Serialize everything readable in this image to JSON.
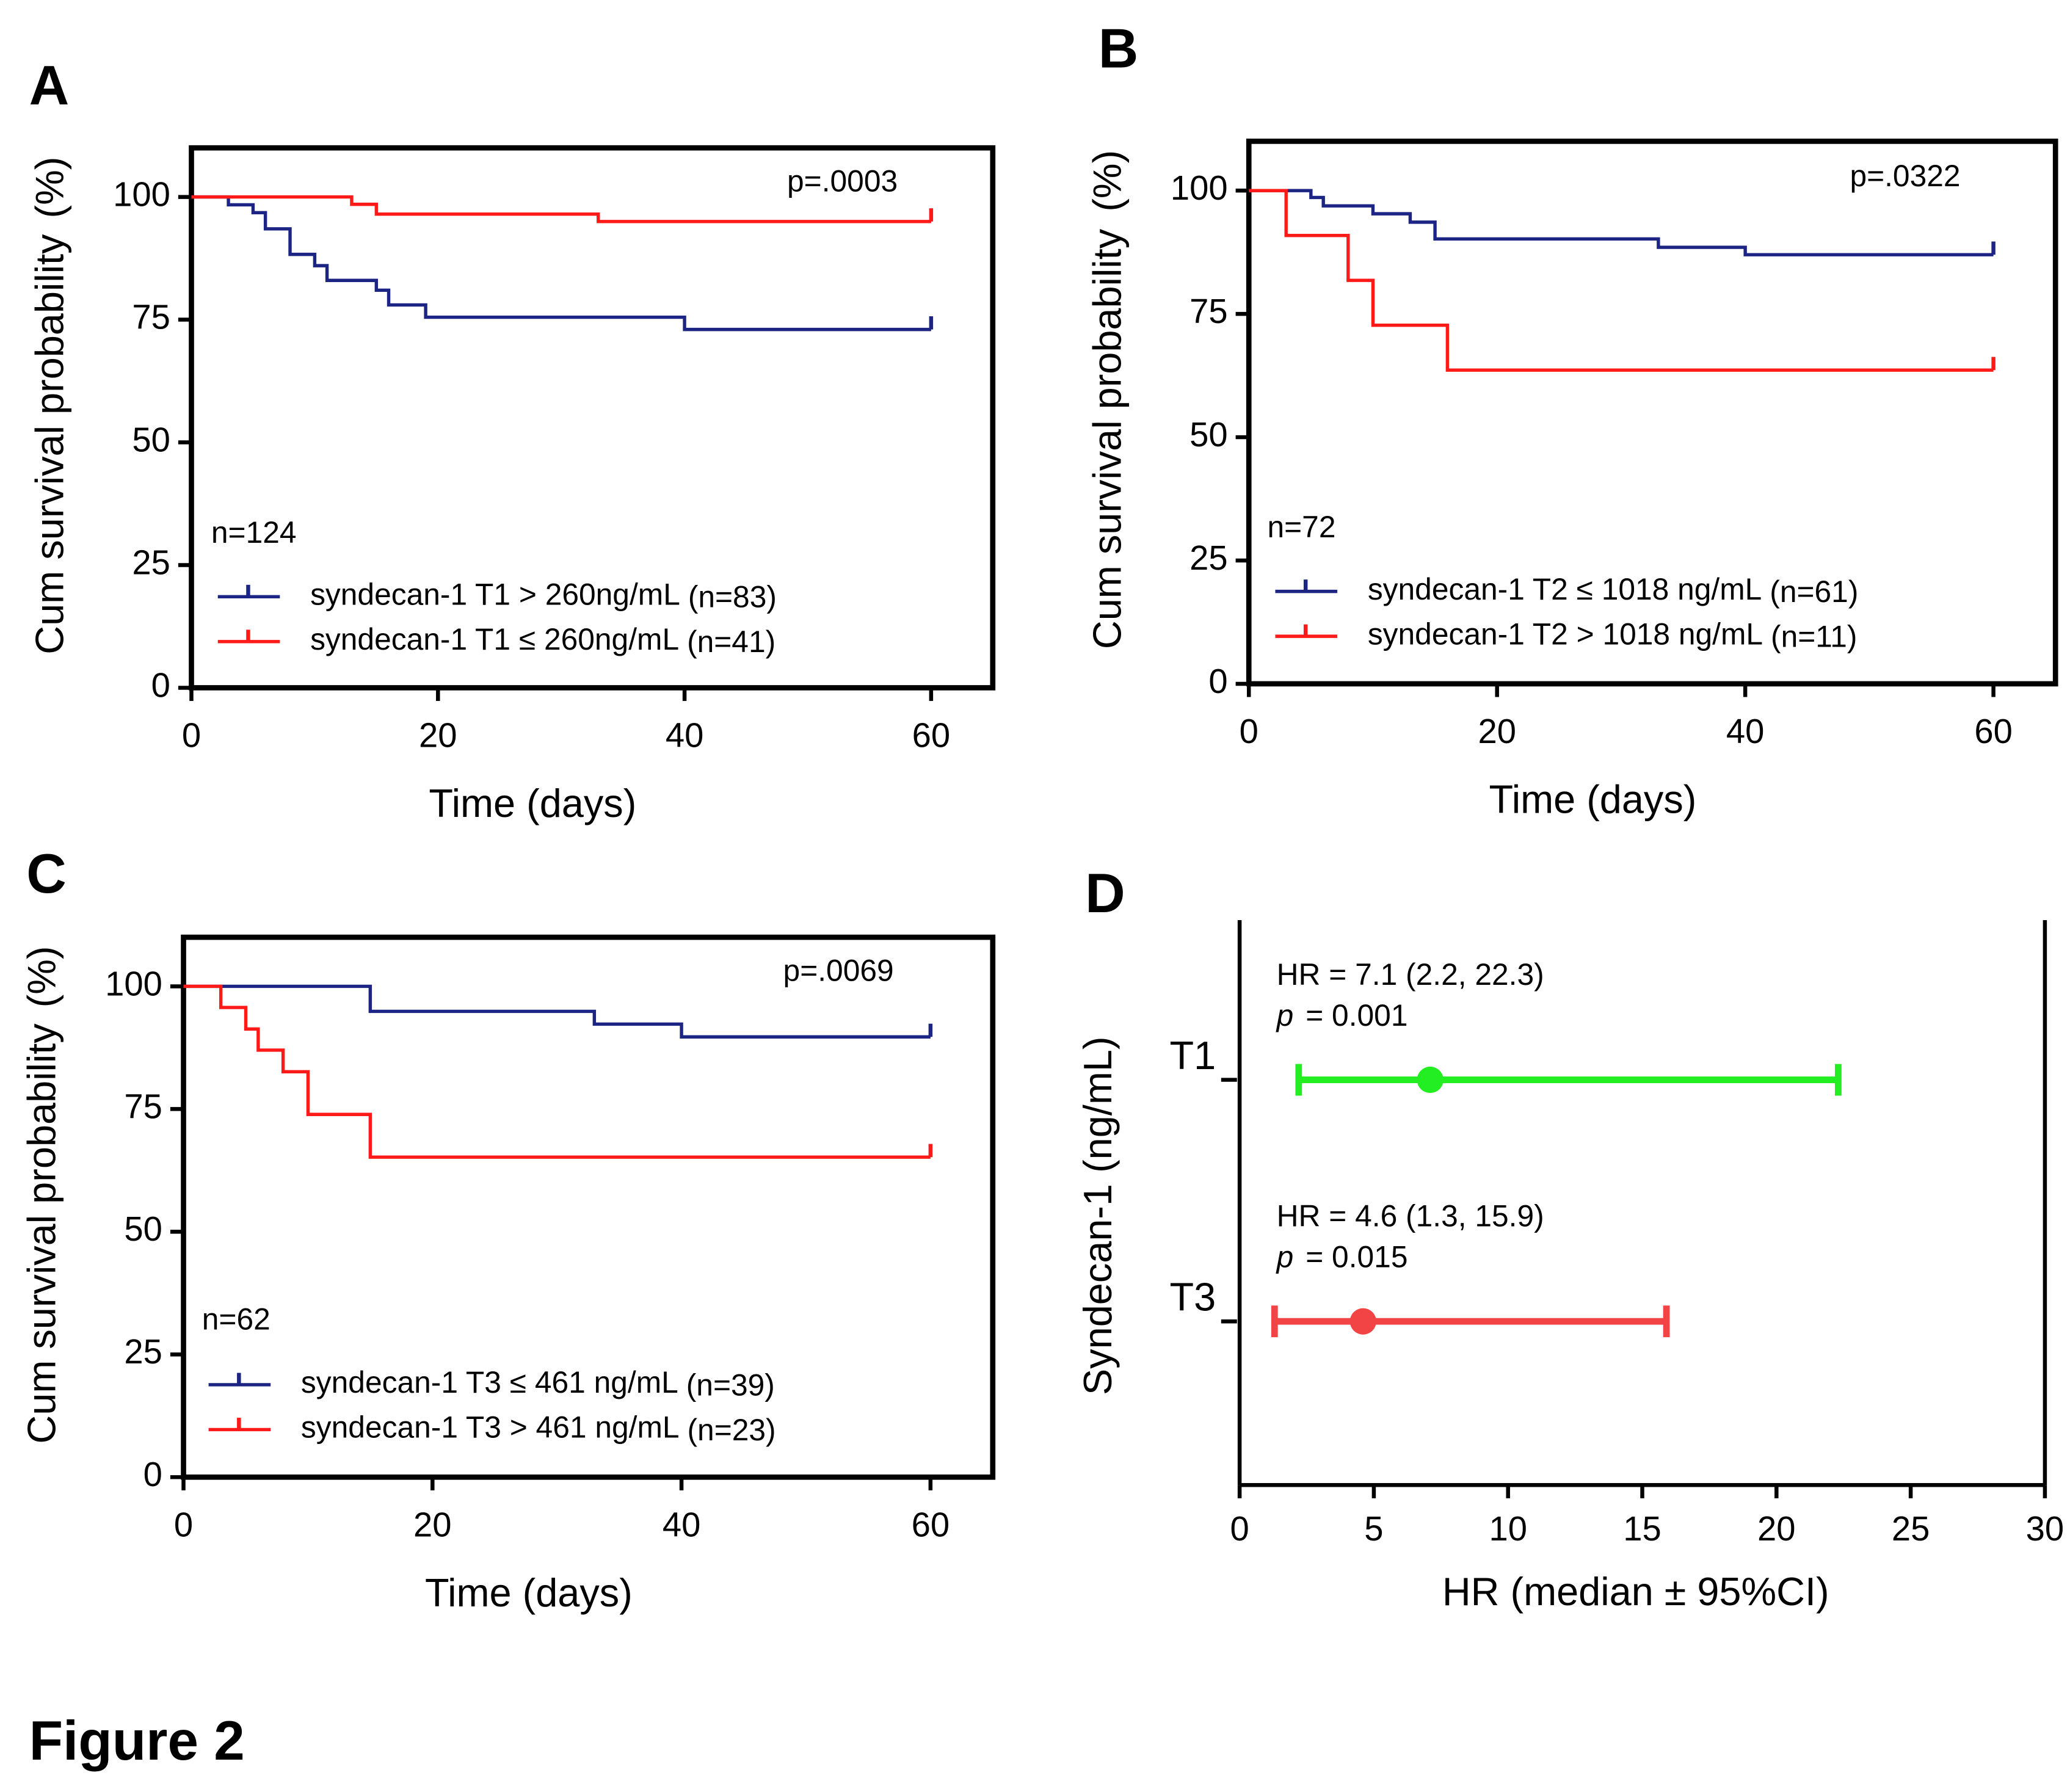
{
  "figure_title": "Figure 2",
  "chart_data": [
    {
      "type": "km",
      "panel": "A",
      "p_text": "p=.0003",
      "n_text": "n=124",
      "ylabel": "Cum survival probability",
      "ylabel_unit": "(%)",
      "xlabel": "Time (days)",
      "xlim": [
        0,
        65
      ],
      "ylim": [
        0,
        110
      ],
      "xticks": [
        0,
        20,
        40,
        60
      ],
      "yticks": [
        0,
        25,
        50,
        75,
        100
      ],
      "series": [
        {
          "name": "syndecan-1 T1 > 260ng/mL",
          "count_label": "(n=83)",
          "color": "#1c2583",
          "x": [
            0,
            3,
            5,
            6,
            8,
            10,
            11,
            15,
            16,
            19,
            40,
            60
          ],
          "values": [
            100,
            98.4,
            96.8,
            93.5,
            88.3,
            86,
            83,
            81,
            78,
            75.5,
            73,
            73
          ]
        },
        {
          "name": "syndecan-1 T1 ≤ 260ng/mL",
          "count_label": "(n=41)",
          "color": "#ff1a1a",
          "x": [
            0,
            13,
            15,
            33,
            60
          ],
          "values": [
            100,
            98.5,
            96.5,
            95,
            95
          ]
        }
      ]
    },
    {
      "type": "km",
      "panel": "B",
      "p_text": "p=.0322",
      "n_text": "n=72",
      "ylabel": "Cum survival probability",
      "ylabel_unit": "(%)",
      "xlabel": "Time (days)",
      "xlim": [
        0,
        65
      ],
      "ylim": [
        0,
        110
      ],
      "xticks": [
        0,
        20,
        40,
        60
      ],
      "yticks": [
        0,
        25,
        50,
        75,
        100
      ],
      "series": [
        {
          "name": "syndecan-1 T2 ≤ 1018 ng/mL",
          "count_label": "(n=61)",
          "color": "#1c2583",
          "x": [
            0,
            5,
            6,
            10,
            13,
            15,
            33,
            40,
            60
          ],
          "values": [
            100,
            98.6,
            96.9,
            95.3,
            93.6,
            90.2,
            88.5,
            87,
            87
          ]
        },
        {
          "name": "syndecan-1 T2 > 1018 ng/mL",
          "count_label": "(n=11)",
          "color": "#ff1a1a",
          "x": [
            0,
            3,
            8,
            10,
            16,
            60
          ],
          "values": [
            100,
            90.9,
            81.8,
            72.7,
            63.6,
            63.6
          ]
        }
      ]
    },
    {
      "type": "km",
      "panel": "C",
      "p_text": "p=.0069",
      "n_text": "n=62",
      "ylabel": "Cum survival probability",
      "ylabel_unit": "(%)",
      "xlabel": "Time (days)",
      "xlim": [
        0,
        65
      ],
      "ylim": [
        0,
        110
      ],
      "xticks": [
        0,
        20,
        40,
        60
      ],
      "yticks": [
        0,
        25,
        50,
        75,
        100
      ],
      "series": [
        {
          "name": "syndecan-1 T3 ≤ 461 ng/mL",
          "count_label": "(n=39)",
          "color": "#1c2583",
          "x": [
            0,
            15,
            33,
            40,
            60
          ],
          "values": [
            100,
            94.9,
            92.3,
            89.7,
            89.7
          ]
        },
        {
          "name": "syndecan-1 T3 > 461 ng/mL",
          "count_label": "(n=23)",
          "color": "#ff1a1a",
          "x": [
            0,
            3,
            5,
            6,
            8,
            10,
            15,
            60
          ],
          "values": [
            100,
            95.7,
            91.3,
            87,
            82.6,
            73.9,
            65.2,
            65.2
          ]
        }
      ]
    },
    {
      "type": "forest",
      "panel": "D",
      "ylabel": "Syndecan-1 (ng/mL)",
      "xlabel": "HR (median ± 95%CI)",
      "xlim": [
        0,
        30
      ],
      "xticks": [
        0,
        5,
        10,
        15,
        20,
        25,
        30
      ],
      "categories": [
        "T1",
        "T3"
      ],
      "values": [
        7.1,
        4.6
      ],
      "lower": [
        2.2,
        1.3
      ],
      "upper": [
        22.3,
        15.9
      ],
      "colors": [
        "#22ee22",
        "#f24444"
      ],
      "annotations": [
        {
          "hr": "HR = 7.1 (2.2, 22.3)",
          "p_symbol": "p",
          "p_rest": "= 0.001"
        },
        {
          "hr": "HR = 4.6 (1.3, 15.9)",
          "p_symbol": "p",
          "p_rest": "= 0.015"
        }
      ]
    }
  ]
}
